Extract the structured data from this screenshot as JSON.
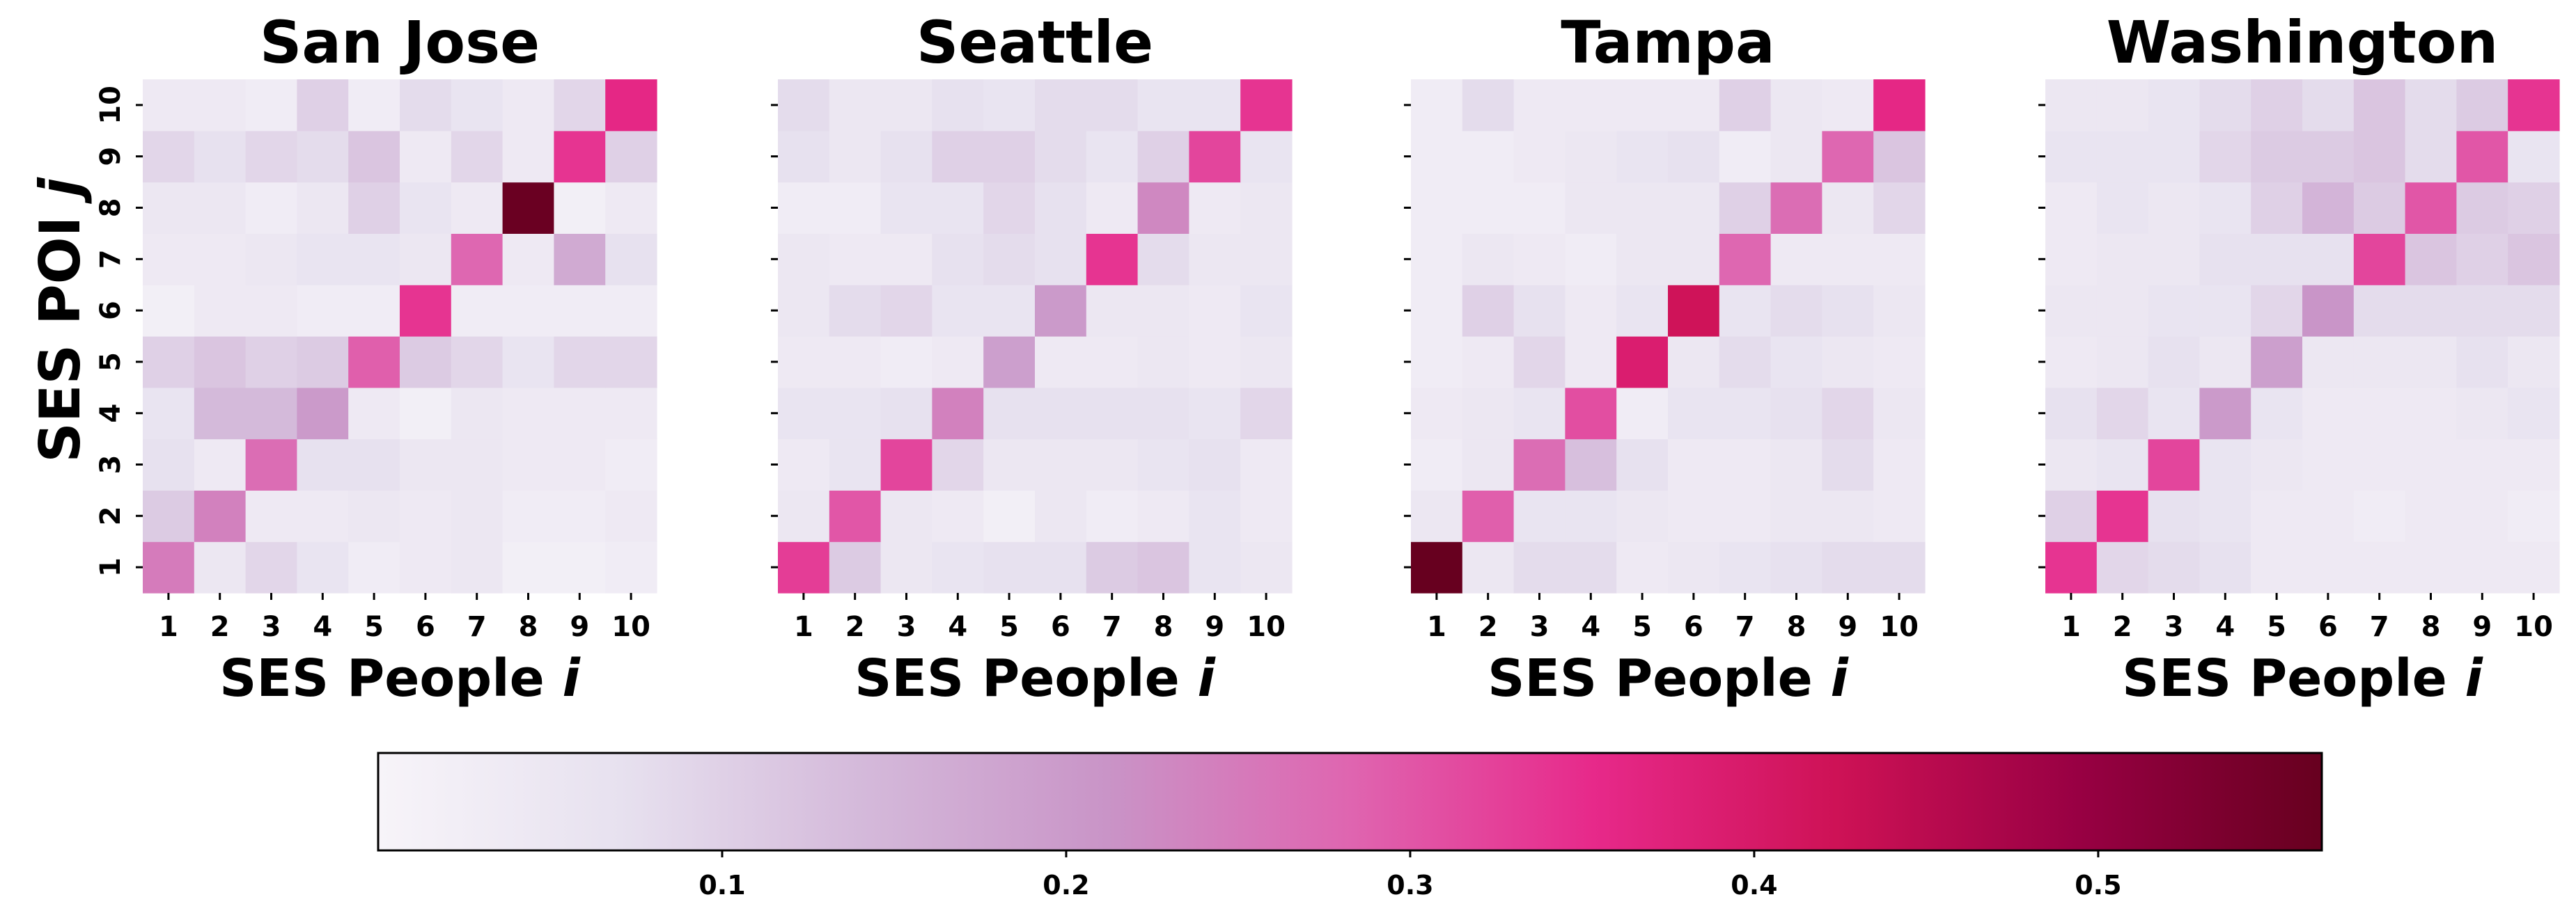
{
  "chart_data": {
    "type": "heatmap",
    "ylabel": "SES POI ",
    "ylabel_var": "j",
    "categories": [
      "1",
      "2",
      "3",
      "4",
      "5",
      "6",
      "7",
      "8",
      "9",
      "10"
    ],
    "panels": [
      {
        "title": "San Jose",
        "xlabel": "SES People ",
        "xlabel_var": "i",
        "values": [
          [
            0.25,
            0.05,
            0.09,
            0.06,
            0.03,
            0.04,
            0.05,
            0.02,
            0.02,
            0.03
          ],
          [
            0.11,
            0.24,
            0.04,
            0.04,
            0.05,
            0.04,
            0.05,
            0.03,
            0.03,
            0.04
          ],
          [
            0.07,
            0.04,
            0.27,
            0.07,
            0.07,
            0.05,
            0.05,
            0.04,
            0.04,
            0.03
          ],
          [
            0.06,
            0.14,
            0.14,
            0.2,
            0.04,
            0.02,
            0.05,
            0.04,
            0.04,
            0.04
          ],
          [
            0.1,
            0.12,
            0.1,
            0.11,
            0.29,
            0.11,
            0.09,
            0.06,
            0.09,
            0.09
          ],
          [
            0.02,
            0.04,
            0.04,
            0.03,
            0.03,
            0.34,
            0.03,
            0.03,
            0.03,
            0.03
          ],
          [
            0.04,
            0.04,
            0.05,
            0.06,
            0.06,
            0.05,
            0.28,
            0.04,
            0.17,
            0.07
          ],
          [
            0.05,
            0.05,
            0.03,
            0.05,
            0.1,
            0.06,
            0.04,
            0.56,
            0.02,
            0.04
          ],
          [
            0.09,
            0.07,
            0.09,
            0.08,
            0.12,
            0.04,
            0.09,
            0.04,
            0.34,
            0.1
          ],
          [
            0.04,
            0.04,
            0.03,
            0.1,
            0.03,
            0.08,
            0.06,
            0.04,
            0.09,
            0.36
          ]
        ]
      },
      {
        "title": "Seattle",
        "xlabel": "SES People ",
        "xlabel_var": "i",
        "values": [
          [
            0.33,
            0.11,
            0.05,
            0.06,
            0.07,
            0.07,
            0.11,
            0.12,
            0.06,
            0.05
          ],
          [
            0.05,
            0.3,
            0.05,
            0.04,
            0.02,
            0.05,
            0.03,
            0.04,
            0.06,
            0.04
          ],
          [
            0.04,
            0.06,
            0.32,
            0.09,
            0.05,
            0.05,
            0.05,
            0.06,
            0.07,
            0.04
          ],
          [
            0.06,
            0.06,
            0.07,
            0.24,
            0.07,
            0.07,
            0.07,
            0.07,
            0.06,
            0.09
          ],
          [
            0.04,
            0.04,
            0.03,
            0.04,
            0.19,
            0.04,
            0.04,
            0.05,
            0.04,
            0.05
          ],
          [
            0.05,
            0.08,
            0.09,
            0.06,
            0.06,
            0.2,
            0.05,
            0.05,
            0.04,
            0.06
          ],
          [
            0.05,
            0.04,
            0.04,
            0.07,
            0.08,
            0.07,
            0.34,
            0.08,
            0.05,
            0.05
          ],
          [
            0.03,
            0.03,
            0.06,
            0.06,
            0.09,
            0.07,
            0.04,
            0.23,
            0.04,
            0.05
          ],
          [
            0.07,
            0.05,
            0.07,
            0.1,
            0.1,
            0.08,
            0.06,
            0.1,
            0.32,
            0.06
          ],
          [
            0.08,
            0.05,
            0.05,
            0.07,
            0.06,
            0.08,
            0.08,
            0.06,
            0.06,
            0.34
          ]
        ]
      },
      {
        "title": "Tampa",
        "xlabel": "SES People ",
        "xlabel_var": "i",
        "values": [
          [
            0.57,
            0.05,
            0.08,
            0.08,
            0.04,
            0.05,
            0.06,
            0.07,
            0.08,
            0.08
          ],
          [
            0.05,
            0.29,
            0.06,
            0.06,
            0.05,
            0.04,
            0.04,
            0.05,
            0.05,
            0.04
          ],
          [
            0.03,
            0.05,
            0.27,
            0.13,
            0.07,
            0.04,
            0.04,
            0.05,
            0.08,
            0.04
          ],
          [
            0.04,
            0.05,
            0.06,
            0.31,
            0.03,
            0.06,
            0.06,
            0.07,
            0.09,
            0.05
          ],
          [
            0.03,
            0.04,
            0.09,
            0.04,
            0.39,
            0.05,
            0.08,
            0.06,
            0.05,
            0.04
          ],
          [
            0.03,
            0.1,
            0.07,
            0.04,
            0.06,
            0.42,
            0.06,
            0.08,
            0.07,
            0.05
          ],
          [
            0.03,
            0.05,
            0.04,
            0.03,
            0.05,
            0.05,
            0.28,
            0.04,
            0.04,
            0.04
          ],
          [
            0.03,
            0.03,
            0.03,
            0.05,
            0.05,
            0.05,
            0.1,
            0.27,
            0.05,
            0.09
          ],
          [
            0.03,
            0.03,
            0.04,
            0.05,
            0.06,
            0.07,
            0.03,
            0.05,
            0.28,
            0.12
          ],
          [
            0.03,
            0.08,
            0.04,
            0.04,
            0.04,
            0.04,
            0.1,
            0.05,
            0.04,
            0.36
          ]
        ]
      },
      {
        "title": "Washington",
        "xlabel": "SES People ",
        "xlabel_var": "i",
        "values": [
          [
            0.34,
            0.09,
            0.08,
            0.07,
            0.04,
            0.04,
            0.04,
            0.04,
            0.04,
            0.04
          ],
          [
            0.1,
            0.34,
            0.07,
            0.06,
            0.04,
            0.04,
            0.03,
            0.04,
            0.04,
            0.03
          ],
          [
            0.05,
            0.06,
            0.32,
            0.06,
            0.05,
            0.04,
            0.04,
            0.04,
            0.04,
            0.04
          ],
          [
            0.07,
            0.09,
            0.06,
            0.2,
            0.06,
            0.04,
            0.04,
            0.04,
            0.05,
            0.06
          ],
          [
            0.04,
            0.05,
            0.07,
            0.05,
            0.19,
            0.05,
            0.05,
            0.05,
            0.07,
            0.05
          ],
          [
            0.05,
            0.05,
            0.06,
            0.06,
            0.09,
            0.21,
            0.08,
            0.08,
            0.08,
            0.08
          ],
          [
            0.04,
            0.05,
            0.05,
            0.07,
            0.07,
            0.07,
            0.32,
            0.12,
            0.1,
            0.12
          ],
          [
            0.04,
            0.06,
            0.05,
            0.06,
            0.1,
            0.15,
            0.11,
            0.3,
            0.11,
            0.1
          ],
          [
            0.06,
            0.06,
            0.06,
            0.09,
            0.11,
            0.11,
            0.12,
            0.08,
            0.3,
            0.06
          ],
          [
            0.05,
            0.05,
            0.06,
            0.08,
            0.1,
            0.08,
            0.12,
            0.08,
            0.11,
            0.34
          ]
        ]
      }
    ],
    "colorbar": {
      "range": [
        0,
        0.565
      ],
      "ticks": [
        "0.1",
        "0.2",
        "0.3",
        "0.4",
        "0.5"
      ],
      "colormap": [
        "#f7f4f9",
        "#e7e1ef",
        "#d4b9da",
        "#c994c7",
        "#df65b0",
        "#e7298a",
        "#ce1256",
        "#980043",
        "#67001f"
      ]
    }
  }
}
